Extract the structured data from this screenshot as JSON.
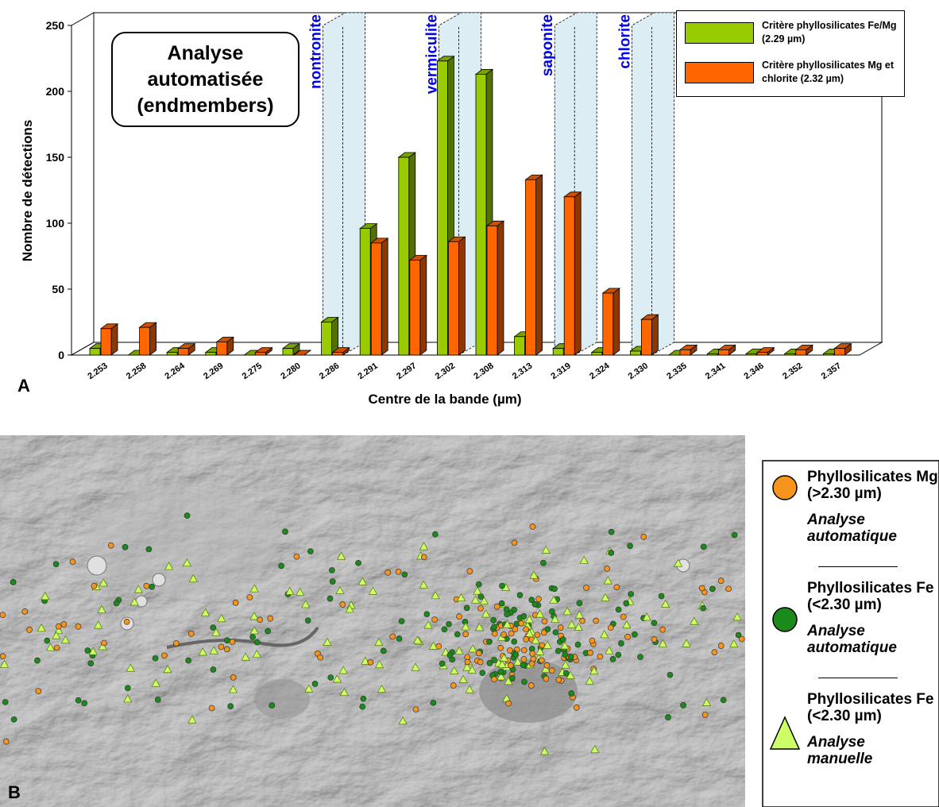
{
  "chart_data": {
    "type": "bar",
    "x_label": "Centre de la bande (µm)",
    "y_label": "Nombre de détections",
    "categories": [
      "2.253",
      "2.258",
      "2.264",
      "2.269",
      "2.275",
      "2.280",
      "2.286",
      "2.291",
      "2.297",
      "2.302",
      "2.308",
      "2.313",
      "2.319",
      "2.324",
      "2.330",
      "2.335",
      "2.341",
      "2.346",
      "2.352",
      "2.357"
    ],
    "series": [
      {
        "name": "Critère phyllosilicates Fe/Mg (2.29 µm)",
        "color": "#99cc00",
        "values": [
          5,
          0,
          2,
          2,
          0,
          5,
          25,
          96,
          150,
          223,
          213,
          14,
          5,
          2,
          3,
          0,
          1,
          1,
          1,
          1
        ]
      },
      {
        "name": "Critère phyllosilicates Mg et chlorite (2.32 µm)",
        "color": "#ff6600",
        "values": [
          20,
          21,
          5,
          10,
          2,
          0,
          2,
          85,
          72,
          86,
          98,
          133,
          120,
          47,
          27,
          4,
          4,
          2,
          4,
          5
        ]
      }
    ],
    "ylim": [
      0,
      250
    ],
    "yticks": [
      0,
      50,
      100,
      150,
      200,
      250
    ],
    "annotations": [
      {
        "text": "Analyse automatisée (endmembers)"
      },
      {
        "text": "nontronite",
        "x": "2.286"
      },
      {
        "text": "vermiculite",
        "x": "2.302"
      },
      {
        "text": "saponite",
        "x": "2.319"
      },
      {
        "text": "chlorite",
        "x": "2.330"
      }
    ],
    "legend": "top-right"
  },
  "panels": {
    "a": "A",
    "b": "B"
  },
  "map_legend": [
    {
      "label": "Phyllosilicates Mg (>2.30 µm)",
      "method": "Analyse automatique",
      "symbol": "circle",
      "color": "#f7941d"
    },
    {
      "label": "Phyllosilicates Fe (<2.30 µm)",
      "method": "Analyse automatique",
      "symbol": "circle",
      "color": "#1a8a1a"
    },
    {
      "label": "Phyllosilicates Fe (<2.30 µm)",
      "method": "Analyse manuelle",
      "symbol": "triangle",
      "color": "#ccff66"
    }
  ]
}
